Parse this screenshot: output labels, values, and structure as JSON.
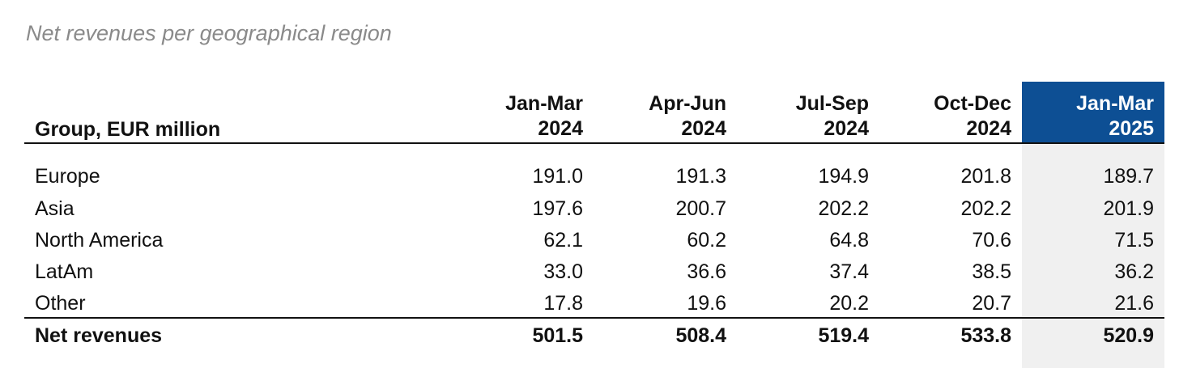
{
  "title": "Net revenues per geographical region",
  "table": {
    "header": {
      "label": "Group, EUR million",
      "columns": [
        {
          "period": "Jan-Mar",
          "year": "2024"
        },
        {
          "period": "Apr-Jun",
          "year": "2024"
        },
        {
          "period": "Jul-Sep",
          "year": "2024"
        },
        {
          "period": "Oct-Dec",
          "year": "2024"
        },
        {
          "period": "Jan-Mar",
          "year": "2025"
        }
      ]
    },
    "rows": [
      [
        "Europe",
        "191.0",
        "191.3",
        "194.9",
        "201.8",
        "189.7"
      ],
      [
        "Asia",
        "197.6",
        "200.7",
        "202.2",
        "202.2",
        "201.9"
      ],
      [
        "North America",
        "62.1",
        "60.2",
        "64.8",
        "70.6",
        "71.5"
      ],
      [
        "LatAm",
        "33.0",
        "36.6",
        "37.4",
        "38.5",
        "36.2"
      ],
      [
        "Other",
        "17.8",
        "19.6",
        "20.2",
        "20.7",
        "21.6"
      ]
    ],
    "total": [
      "Net revenues",
      "501.5",
      "508.4",
      "519.4",
      "533.8",
      "520.9"
    ]
  }
}
